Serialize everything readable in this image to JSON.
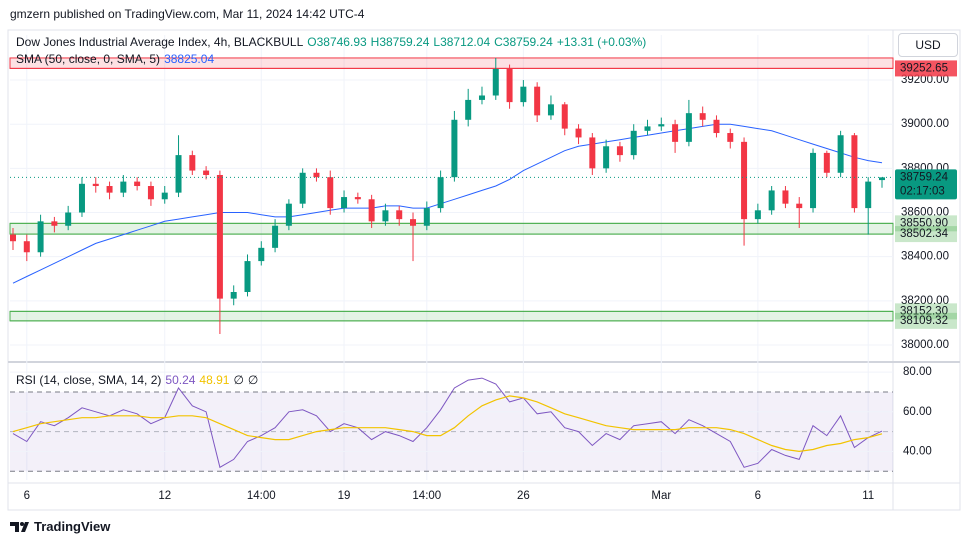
{
  "header": {
    "publisher": "gmzern published on TradingView.com, Mar 11, 2024 14:42 UTC-4",
    "currency": "USD",
    "brand": "TradingView"
  },
  "chart_data": [
    {
      "type": "candlestick",
      "title": "Dow Jones Industrial Average Index, 4h, BLACKBULL",
      "ohlc_legend": [
        "O38746.93",
        "H38759.24",
        "L38712.04",
        "C38759.24",
        "+13.31 (+0.03%)"
      ],
      "categories": [
        null,
        "6",
        null,
        null,
        null,
        null,
        null,
        null,
        null,
        null,
        null,
        "12",
        null,
        null,
        null,
        null,
        null,
        null,
        "14:00",
        null,
        null,
        null,
        null,
        null,
        "19",
        null,
        null,
        null,
        null,
        null,
        "14:00",
        null,
        null,
        null,
        null,
        null,
        null,
        "26",
        null,
        null,
        null,
        null,
        null,
        null,
        null,
        null,
        null,
        "Mar",
        null,
        null,
        null,
        null,
        null,
        null,
        "6",
        null,
        null,
        null,
        null,
        null,
        null,
        null,
        "11",
        null
      ],
      "open": [
        38500,
        38470,
        38420,
        38560,
        38540,
        38600,
        38730,
        38720,
        38690,
        38740,
        38720,
        38660,
        38690,
        38860,
        38790,
        38770,
        38210,
        38240,
        38380,
        38440,
        38540,
        38640,
        38780,
        38760,
        38620,
        38670,
        38660,
        38560,
        38610,
        38570,
        38540,
        38620,
        38760,
        39020,
        39110,
        39130,
        39250,
        39100,
        39170,
        39040,
        39090,
        38980,
        38940,
        38800,
        38900,
        38860,
        38970,
        38990,
        39000,
        38920,
        39050,
        39020,
        38960,
        38920,
        38570,
        38610,
        38700,
        38640,
        38620,
        38870,
        38780,
        38950,
        38620,
        38746.93
      ],
      "high": [
        38530,
        38500,
        38590,
        38580,
        38630,
        38760,
        38760,
        38740,
        38770,
        38760,
        38740,
        38720,
        38950,
        38880,
        38810,
        38790,
        38270,
        38410,
        38470,
        38570,
        38660,
        38800,
        38800,
        38790,
        38700,
        38690,
        38680,
        38640,
        38630,
        38600,
        38650,
        38790,
        39060,
        39160,
        39170,
        39300,
        39270,
        39200,
        39190,
        39130,
        39100,
        39000,
        38960,
        38930,
        38920,
        39000,
        39020,
        39030,
        39020,
        39110,
        39080,
        39040,
        38980,
        38940,
        38640,
        38720,
        38720,
        38670,
        38890,
        38880,
        38970,
        38960,
        38760,
        38759.24
      ],
      "low": [
        38430,
        38380,
        38400,
        38510,
        38520,
        38580,
        38690,
        38660,
        38670,
        38700,
        38630,
        38640,
        38670,
        38770,
        38750,
        38050,
        38180,
        38220,
        38360,
        38420,
        38520,
        38620,
        38740,
        38590,
        38600,
        38640,
        38530,
        38540,
        38540,
        38380,
        38520,
        38600,
        38740,
        38990,
        39090,
        39110,
        39070,
        39080,
        39010,
        39020,
        38950,
        38910,
        38770,
        38780,
        38830,
        38840,
        38950,
        38970,
        38870,
        38900,
        38990,
        38940,
        38890,
        38450,
        38550,
        38590,
        38620,
        38530,
        38600,
        38760,
        38760,
        38600,
        38500,
        38712.04
      ],
      "close": [
        38470,
        38420,
        38560,
        38540,
        38600,
        38730,
        38720,
        38690,
        38740,
        38720,
        38660,
        38690,
        38860,
        38790,
        38770,
        38210,
        38240,
        38380,
        38440,
        38540,
        38640,
        38780,
        38760,
        38620,
        38670,
        38660,
        38560,
        38610,
        38570,
        38540,
        38620,
        38760,
        39020,
        39110,
        39130,
        39250,
        39100,
        39170,
        39040,
        39090,
        38980,
        38940,
        38800,
        38900,
        38860,
        38970,
        38990,
        39000,
        38920,
        39050,
        39020,
        38960,
        38920,
        38570,
        38610,
        38700,
        38640,
        38620,
        38870,
        38780,
        38950,
        38620,
        38740,
        38759.24
      ],
      "up_color": "#089981",
      "down_color": "#f23645",
      "sma": {
        "name": "SMA (50, close, 0, SMA, 5)",
        "color": "#2962ff",
        "values": [
          38280,
          38310,
          38340,
          38370,
          38400,
          38430,
          38460,
          38480,
          38500,
          38520,
          38540,
          38560,
          38570,
          38580,
          38590,
          38600,
          38600,
          38600,
          38590,
          38580,
          38580,
          38590,
          38600,
          38610,
          38620,
          38620,
          38620,
          38630,
          38630,
          38620,
          38620,
          38640,
          38660,
          38680,
          38700,
          38720,
          38750,
          38790,
          38820,
          38850,
          38880,
          38900,
          38910,
          38920,
          38930,
          38940,
          38950,
          38960,
          38970,
          38980,
          38990,
          39000,
          39000,
          38990,
          38980,
          38970,
          38950,
          38930,
          38910,
          38890,
          38870,
          38850,
          38835,
          38825.04
        ]
      },
      "countdown": "02:17:03",
      "zones": [
        {
          "range": [
            39300,
            39252.65
          ],
          "color": "#f23645",
          "text_color": "#ffffff",
          "labels": [
            {
              "value": 39252.65,
              "label": "39252.65"
            }
          ]
        },
        {
          "range": [
            38550.9,
            38502.34
          ],
          "color": "#4caf50",
          "text_color": "#131722",
          "labels": [
            {
              "value": 38550.9,
              "label": "38550.90"
            },
            {
              "value": 38502.34,
              "label": "38502.34"
            }
          ]
        },
        {
          "range": [
            38152.3,
            38109.32
          ],
          "color": "#4caf50",
          "text_color": "#131722",
          "labels": [
            {
              "value": 38152.3,
              "label": "38152.30"
            },
            {
              "value": 38109.32,
              "label": "38109.32"
            }
          ]
        }
      ],
      "ylim": [
        37932,
        39404
      ],
      "yticks": [
        {
          "value": 38000,
          "label": "38000.00"
        },
        {
          "value": 38200,
          "label": "38200.00"
        },
        {
          "value": 38400,
          "label": "38400.00"
        },
        {
          "value": 38600,
          "label": "38600.00"
        },
        {
          "value": 38800,
          "label": "38800.00"
        },
        {
          "value": 39000,
          "label": "39000.00"
        },
        {
          "value": 39200,
          "label": "39200.00"
        }
      ],
      "grid": true
    },
    {
      "type": "line",
      "title": "RSI (14, close, SMA, 14, 2)",
      "na_labels": [
        "∅",
        "∅"
      ],
      "series": [
        {
          "color": "#7e57c2",
          "values": [
            49,
            45,
            55,
            53,
            57,
            62,
            60,
            58,
            61,
            59,
            54,
            57,
            72,
            63,
            60,
            32,
            36,
            45,
            48,
            52,
            60,
            61,
            58,
            50,
            54,
            52,
            46,
            50,
            48,
            45,
            52,
            61,
            72,
            76,
            77,
            74,
            65,
            67,
            59,
            60,
            52,
            50,
            43,
            49,
            46,
            53,
            54,
            55,
            49,
            56,
            53,
            49,
            45,
            32,
            34,
            41,
            38,
            36,
            53,
            48,
            58,
            42,
            47,
            50.24
          ]
        },
        {
          "color": "#f2c300",
          "values": [
            50,
            52,
            54,
            55,
            56,
            57,
            57,
            58,
            58,
            58,
            57,
            57,
            58,
            58,
            57,
            54,
            51,
            48,
            47,
            46,
            46,
            48,
            50,
            51,
            52,
            52,
            52,
            52,
            51,
            50,
            48,
            48,
            52,
            58,
            63,
            66,
            68,
            67,
            65,
            62,
            59,
            57,
            55,
            53,
            52,
            51,
            51,
            51,
            51,
            52,
            52,
            52,
            51,
            49,
            46,
            43,
            41,
            40,
            41,
            43,
            44,
            46,
            47,
            48.91
          ]
        }
      ],
      "bands": [
        30,
        70
      ],
      "midline": 50,
      "band_color": "#7e57c2",
      "ylim": [
        25.6,
        83.6
      ],
      "yticks": [
        {
          "value": 40,
          "label": "40.00"
        },
        {
          "value": 60,
          "label": "60.00"
        },
        {
          "value": 80,
          "label": "80.00"
        }
      ],
      "grid": true
    }
  ]
}
